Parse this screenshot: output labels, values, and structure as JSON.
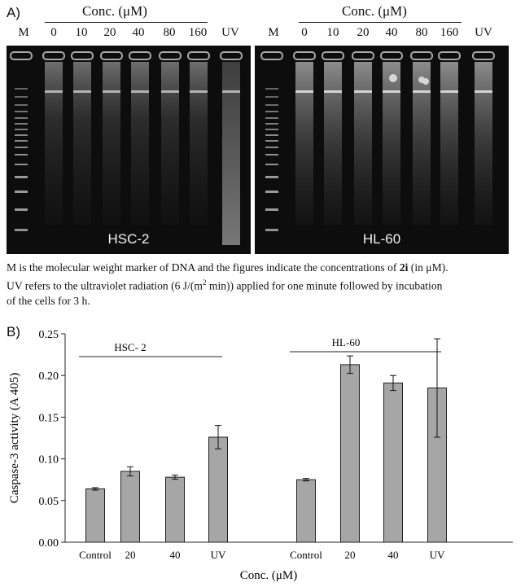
{
  "panel_a": {
    "label": "A)",
    "left_gel": {
      "conc_header": "Conc. (μM)",
      "marker_label": "M",
      "lanes": [
        "0",
        "10",
        "20",
        "40",
        "80",
        "160"
      ],
      "uv_label": "UV",
      "cell_line": "HSC-2"
    },
    "right_gel": {
      "conc_header": "Conc. (μM)",
      "marker_label": "M",
      "lanes": [
        "0",
        "10",
        "20",
        "40",
        "80",
        "160"
      ],
      "uv_label": "UV",
      "cell_line": "HL-60"
    },
    "caption": {
      "line1_a": "M is the molecular weight marker of DNA and the figures indicate the concentrations of ",
      "line1_bold": "2i",
      "line1_b": " (in μM).",
      "line2_a": "UV refers to the ultraviolet radiation (6 J/(m",
      "line2_sup": "2",
      "line2_b": " min)) applied for one minute followed by incubation",
      "line3": "of the cells for 3 h."
    }
  },
  "panel_b": {
    "label": "B)"
  },
  "chart_data": {
    "type": "bar",
    "xlabel": "Conc. (μM)",
    "ylabel": "Caspase-3 activity (A 405)",
    "ylim": [
      0,
      0.25
    ],
    "yticks": [
      "0.00",
      "0.05",
      "0.10",
      "0.15",
      "0.20",
      "0.25"
    ],
    "bar_color": "#a6a6a6",
    "grid": false,
    "groups": [
      {
        "name": "HSC- 2",
        "categories": [
          "Control",
          "20",
          "40",
          "UV"
        ],
        "values": [
          0.064,
          0.085,
          0.078,
          0.126
        ],
        "errors": [
          0.0015,
          0.0055,
          0.0025,
          0.014
        ]
      },
      {
        "name": "HL-60",
        "categories": [
          "Control",
          "20",
          "40",
          "UV"
        ],
        "values": [
          0.075,
          0.213,
          0.191,
          0.185
        ],
        "errors": [
          0.0015,
          0.0105,
          0.009,
          0.059
        ]
      }
    ]
  }
}
